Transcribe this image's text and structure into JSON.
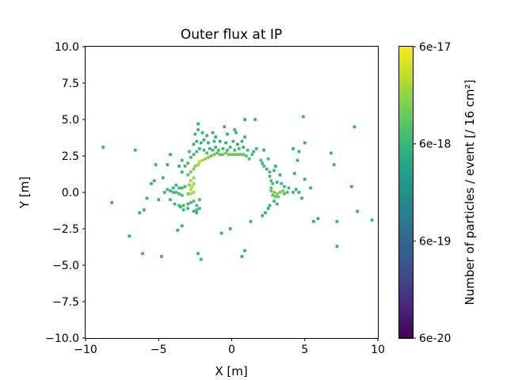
{
  "chart_data": {
    "type": "heatmap",
    "title": "Outer flux at IP",
    "xlabel": "X [m]",
    "ylabel": "Y [m]",
    "xlim": [
      -10,
      10
    ],
    "ylim": [
      -10,
      10
    ],
    "bin_size": 0.2,
    "xticks": [
      -10,
      -5,
      0,
      5,
      10
    ],
    "xtick_labels": [
      "−10",
      "−5",
      "0",
      "5",
      "10"
    ],
    "yticks": [
      -10,
      -7.5,
      -5,
      -2.5,
      0,
      2.5,
      5,
      7.5,
      10
    ],
    "ytick_labels": [
      "−10.0",
      "−7.5",
      "−5.0",
      "−2.5",
      "0.0",
      "2.5",
      "5.0",
      "7.5",
      "10.0"
    ],
    "colorbar": {
      "label": "Number of particles / event [/ 16 cm²]",
      "scale": "log",
      "range": [
        6e-20,
        6e-17
      ],
      "ticks": [
        6e-20,
        6e-19,
        6e-18,
        6e-17
      ],
      "tick_labels": [
        "6e-20",
        "6e-19",
        "6e-18",
        "6e-17"
      ],
      "colormap": "viridis"
    },
    "grid": false,
    "points": [
      [
        -8.8,
        3.1,
        5e-18
      ],
      [
        -6.6,
        2.9,
        5e-18
      ],
      [
        -8.2,
        -0.7,
        5e-18
      ],
      [
        -7.0,
        -3.0,
        5e-18
      ],
      [
        -6.0,
        -1.2,
        5e-18
      ],
      [
        -6.3,
        -1.4,
        5e-18
      ],
      [
        -6.1,
        -4.2,
        5e-18
      ],
      [
        -4.8,
        -4.4,
        5e-18
      ],
      [
        -5.2,
        1.9,
        5e-18
      ],
      [
        -5.8,
        -0.4,
        5e-18
      ],
      [
        -5.0,
        -0.5,
        5e-18
      ],
      [
        -5.5,
        0.6,
        5e-18
      ],
      [
        -5.3,
        0.8,
        5e-18
      ],
      [
        -4.7,
        1.0,
        5e-18
      ],
      [
        -4.4,
        1.9,
        5e-18
      ],
      [
        -4.2,
        2.6,
        5e-18
      ],
      [
        -3.7,
        -2.6,
        5e-18
      ],
      [
        -3.4,
        -2.3,
        5e-18
      ],
      [
        -2.3,
        -4.2,
        5e-18
      ],
      [
        -2.1,
        -4.6,
        5e-18
      ],
      [
        -0.7,
        -2.8,
        5e-18
      ],
      [
        -0.1,
        -2.5,
        5e-18
      ],
      [
        0.7,
        -4.4,
        5e-18
      ],
      [
        0.9,
        -4.0,
        5e-18
      ],
      [
        -4.6,
        0.0,
        6e-18
      ],
      [
        -4.4,
        0.2,
        7e-18
      ],
      [
        -4.2,
        0.1,
        7e-18
      ],
      [
        -4.0,
        0.0,
        7e-18
      ],
      [
        -3.8,
        0.0,
        7e-18
      ],
      [
        -3.6,
        -0.1,
        7e-18
      ],
      [
        -3.4,
        -0.2,
        7e-18
      ],
      [
        -4.0,
        0.3,
        6e-18
      ],
      [
        -3.8,
        0.5,
        6e-18
      ],
      [
        -3.6,
        0.3,
        7e-18
      ],
      [
        -3.4,
        0.3,
        7e-18
      ],
      [
        -3.2,
        0.4,
        6e-18
      ],
      [
        -4.2,
        -0.5,
        6e-18
      ],
      [
        -3.9,
        -0.8,
        6e-18
      ],
      [
        -3.6,
        -0.9,
        6e-18
      ],
      [
        -3.3,
        -0.9,
        6e-18
      ],
      [
        -3.0,
        -0.8,
        6e-18
      ],
      [
        -2.8,
        -0.7,
        7e-18
      ],
      [
        -2.6,
        -0.6,
        8e-18
      ],
      [
        -2.4,
        -0.9,
        7e-18
      ],
      [
        -2.4,
        -1.2,
        7e-18
      ],
      [
        -2.4,
        -1.4,
        6e-18
      ],
      [
        -2.6,
        -1.3,
        6e-18
      ],
      [
        -3.0,
        -1.1,
        6e-18
      ],
      [
        -3.3,
        -1.2,
        6e-18
      ],
      [
        -3.5,
        -1.0,
        6e-18
      ],
      [
        -2.2,
        -1.1,
        6e-18
      ],
      [
        -2.2,
        -0.5,
        7e-18
      ],
      [
        -3.0,
        -0.1,
        1.6e-17
      ],
      [
        -2.8,
        -0.1,
        2.2e-17
      ],
      [
        -2.6,
        0.0,
        2.2e-17
      ],
      [
        -2.8,
        0.2,
        2.4e-17
      ],
      [
        -2.7,
        0.4,
        2.6e-17
      ],
      [
        -2.6,
        0.6,
        2.4e-17
      ],
      [
        -2.8,
        0.8,
        2e-17
      ],
      [
        -2.6,
        1.0,
        1.8e-17
      ],
      [
        -2.9,
        0.5,
        1.5e-17
      ],
      [
        -3.0,
        1.2,
        1e-17
      ],
      [
        -2.8,
        1.4,
        1.2e-17
      ],
      [
        -2.6,
        1.6,
        1.3e-17
      ],
      [
        -2.5,
        1.8,
        1.6e-17
      ],
      [
        -2.3,
        1.9,
        2e-17
      ],
      [
        -2.2,
        2.1,
        2.6e-17
      ],
      [
        -2.0,
        2.2,
        2.2e-17
      ],
      [
        -1.8,
        2.3,
        1.8e-17
      ],
      [
        -1.6,
        2.4,
        1.4e-17
      ],
      [
        -1.4,
        2.5,
        1.2e-17
      ],
      [
        -1.2,
        2.6,
        1.2e-17
      ],
      [
        -1.0,
        2.7,
        1e-17
      ],
      [
        -0.8,
        2.6,
        1.1e-17
      ],
      [
        -0.6,
        2.6,
        1.3e-17
      ],
      [
        -0.4,
        2.7,
        1.3e-17
      ],
      [
        -0.2,
        2.6,
        1.3e-17
      ],
      [
        0.0,
        2.6,
        1.2e-17
      ],
      [
        0.2,
        2.6,
        1.2e-17
      ],
      [
        0.4,
        2.6,
        1.1e-17
      ],
      [
        0.6,
        2.6,
        1.2e-17
      ],
      [
        0.8,
        2.6,
        1e-17
      ],
      [
        1.0,
        2.5,
        9e-18
      ],
      [
        1.2,
        2.3,
        8e-18
      ],
      [
        -3.2,
        1.8,
        7e-18
      ],
      [
        -3.0,
        2.0,
        7e-18
      ],
      [
        -3.4,
        2.2,
        6e-18
      ],
      [
        -2.8,
        2.4,
        7e-18
      ],
      [
        -2.6,
        2.6,
        7e-18
      ],
      [
        -2.4,
        2.8,
        7e-18
      ],
      [
        -2.2,
        3.0,
        6e-18
      ],
      [
        -1.9,
        2.9,
        7e-18
      ],
      [
        -1.7,
        2.7,
        8e-18
      ],
      [
        -1.5,
        3.0,
        6e-18
      ],
      [
        -1.3,
        2.9,
        7e-18
      ],
      [
        -1.1,
        3.1,
        6e-18
      ],
      [
        -0.9,
        2.9,
        7e-18
      ],
      [
        -0.6,
        3.0,
        6e-18
      ],
      [
        -0.3,
        2.9,
        7e-18
      ],
      [
        -0.1,
        3.1,
        6e-18
      ],
      [
        0.2,
        2.9,
        7e-18
      ],
      [
        0.5,
        3.0,
        6e-18
      ],
      [
        0.8,
        3.1,
        6e-18
      ],
      [
        1.1,
        2.9,
        7e-18
      ],
      [
        1.4,
        2.6,
        7e-18
      ],
      [
        1.5,
        2.8,
        6e-18
      ],
      [
        -3.4,
        1.4,
        6e-18
      ],
      [
        -3.6,
        1.8,
        5e-18
      ],
      [
        -2.9,
        2.8,
        6e-18
      ],
      [
        -2.6,
        3.3,
        5e-18
      ],
      [
        -2.4,
        3.5,
        5e-18
      ],
      [
        -2.1,
        3.4,
        5e-18
      ],
      [
        -1.9,
        3.6,
        5e-18
      ],
      [
        -1.6,
        3.4,
        5e-18
      ],
      [
        -1.2,
        3.5,
        5e-18
      ],
      [
        -0.8,
        3.5,
        5e-18
      ],
      [
        -0.4,
        3.4,
        5e-18
      ],
      [
        0.1,
        3.5,
        5e-18
      ],
      [
        0.4,
        3.3,
        5e-18
      ],
      [
        0.7,
        3.5,
        5e-18
      ],
      [
        -2.5,
        4.0,
        5e-18
      ],
      [
        -2.3,
        4.3,
        5e-18
      ],
      [
        -2.3,
        4.7,
        5e-18
      ],
      [
        -2.0,
        4.1,
        5e-18
      ],
      [
        -1.7,
        3.9,
        5e-18
      ],
      [
        -1.3,
        4.1,
        5e-18
      ],
      [
        -1.1,
        3.8,
        5e-18
      ],
      [
        -0.5,
        4.5,
        5e-18
      ],
      [
        -0.3,
        4.0,
        5e-18
      ],
      [
        0.3,
        4.1,
        5e-18
      ],
      [
        0.9,
        3.8,
        5e-18
      ],
      [
        0.9,
        5.0,
        5e-18
      ],
      [
        1.6,
        5.0,
        5e-18
      ],
      [
        0.2,
        4.3,
        5e-18
      ],
      [
        2.0,
        2.2,
        7e-18
      ],
      [
        2.1,
        2.0,
        8e-18
      ],
      [
        2.2,
        1.8,
        7e-18
      ],
      [
        2.4,
        1.6,
        6e-18
      ],
      [
        2.6,
        1.4,
        6e-18
      ],
      [
        2.6,
        1.1,
        7e-18
      ],
      [
        2.7,
        0.8,
        7e-18
      ],
      [
        2.8,
        0.6,
        8e-18
      ],
      [
        2.7,
        0.3,
        1e-17
      ],
      [
        2.7,
        0.1,
        1.3e-17
      ],
      [
        2.9,
        0.0,
        1.5e-17
      ],
      [
        3.1,
        -0.1,
        1.6e-17
      ],
      [
        3.3,
        0.0,
        1.5e-17
      ],
      [
        3.5,
        0.1,
        1.3e-17
      ],
      [
        3.2,
        -0.3,
        1.2e-17
      ],
      [
        3.0,
        -0.3,
        1.1e-17
      ],
      [
        2.8,
        -0.2,
        1e-17
      ],
      [
        3.6,
        -0.1,
        9e-18
      ],
      [
        3.8,
        0.0,
        8e-18
      ],
      [
        3.9,
        0.3,
        7e-18
      ],
      [
        3.6,
        0.4,
        7e-18
      ],
      [
        3.4,
        0.6,
        7e-18
      ],
      [
        3.1,
        0.7,
        6e-18
      ],
      [
        2.9,
        -0.6,
        6e-18
      ],
      [
        3.1,
        -0.8,
        6e-18
      ],
      [
        2.6,
        -0.9,
        5e-18
      ],
      [
        2.5,
        -1.1,
        5e-18
      ],
      [
        2.3,
        -1.4,
        5e-18
      ],
      [
        2.1,
        -1.6,
        5e-18
      ],
      [
        3.3,
        1.2,
        6e-18
      ],
      [
        2.9,
        1.5,
        6e-18
      ],
      [
        3.0,
        1.8,
        5e-18
      ],
      [
        4.2,
        0.0,
        6e-18
      ],
      [
        4.4,
        0.2,
        5e-18
      ],
      [
        4.6,
        0.0,
        5e-18
      ],
      [
        4.8,
        -0.4,
        5e-18
      ],
      [
        5.4,
        0.3,
        5e-18
      ],
      [
        5.0,
        0.9,
        5e-18
      ],
      [
        4.3,
        1.3,
        5e-18
      ],
      [
        4.5,
        2.2,
        5e-18
      ],
      [
        4.6,
        2.8,
        5e-18
      ],
      [
        4.2,
        3.0,
        5e-18
      ],
      [
        5.0,
        3.4,
        5e-18
      ],
      [
        4.9,
        5.2,
        5e-18
      ],
      [
        1.7,
        3.0,
        6e-18
      ],
      [
        2.2,
        2.9,
        5e-18
      ],
      [
        2.5,
        2.3,
        6e-18
      ],
      [
        1.3,
        -2.0,
        5e-18
      ],
      [
        5.6,
        -2.0,
        5e-18
      ],
      [
        5.9,
        -1.8,
        5e-18
      ],
      [
        7.2,
        -2.0,
        5e-18
      ],
      [
        7.2,
        -3.7,
        5e-18
      ],
      [
        6.8,
        2.7,
        5e-18
      ],
      [
        7.0,
        1.9,
        5e-18
      ],
      [
        8.2,
        0.4,
        5e-18
      ],
      [
        8.4,
        4.5,
        5e-18
      ],
      [
        8.6,
        -1.3,
        5e-18
      ],
      [
        9.6,
        -1.9,
        5e-18
      ]
    ]
  }
}
